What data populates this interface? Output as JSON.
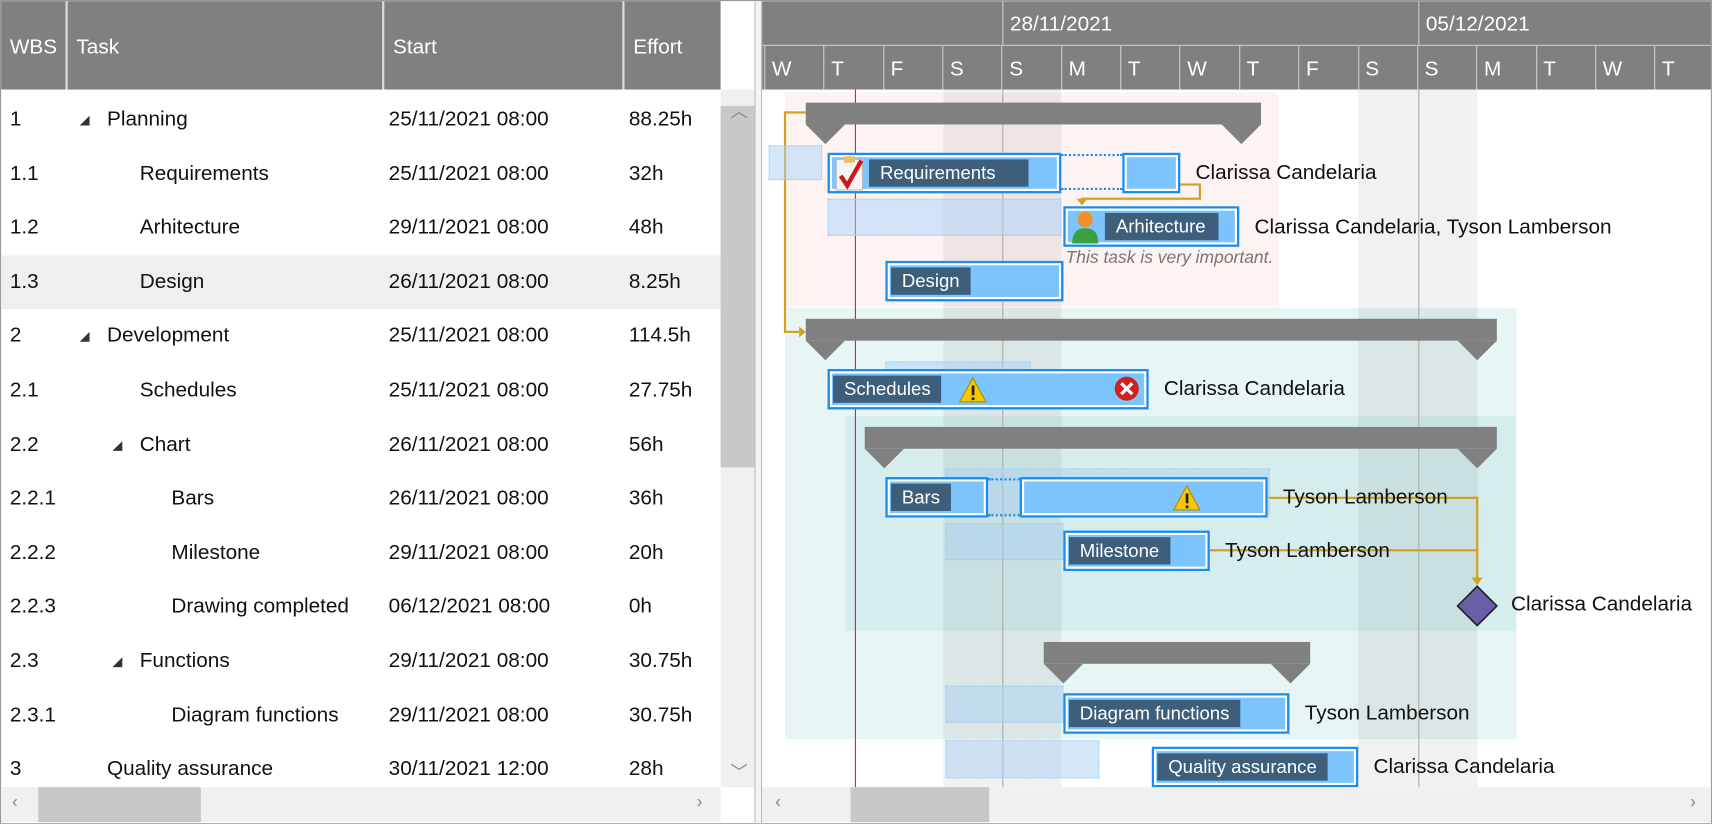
{
  "grid": {
    "columns": [
      "WBS",
      "Task",
      "Start",
      "Effort"
    ],
    "rows": [
      {
        "wbs": "1",
        "task": "Planning",
        "start": "25/11/2021 08:00",
        "effort": "88.25h",
        "level": 0,
        "expandable": true
      },
      {
        "wbs": "1.1",
        "task": "Requirements",
        "start": "25/11/2021 08:00",
        "effort": "32h",
        "level": 1
      },
      {
        "wbs": "1.2",
        "task": "Arhitecture",
        "start": "29/11/2021 08:00",
        "effort": "48h",
        "level": 1
      },
      {
        "wbs": "1.3",
        "task": "Design",
        "start": "26/11/2021 08:00",
        "effort": "8.25h",
        "level": 1,
        "selected": true
      },
      {
        "wbs": "2",
        "task": "Development",
        "start": "25/11/2021 08:00",
        "effort": "114.5h",
        "level": 0,
        "expandable": true
      },
      {
        "wbs": "2.1",
        "task": "Schedules",
        "start": "25/11/2021 08:00",
        "effort": "27.75h",
        "level": 1
      },
      {
        "wbs": "2.2",
        "task": "Chart",
        "start": "26/11/2021 08:00",
        "effort": "56h",
        "level": 1,
        "expandable": true
      },
      {
        "wbs": "2.2.1",
        "task": "Bars",
        "start": "26/11/2021 08:00",
        "effort": "36h",
        "level": 2
      },
      {
        "wbs": "2.2.2",
        "task": "Milestone",
        "start": "29/11/2021 08:00",
        "effort": "20h",
        "level": 2
      },
      {
        "wbs": "2.2.3",
        "task": "Drawing completed",
        "start": "06/12/2021 08:00",
        "effort": "0h",
        "level": 2
      },
      {
        "wbs": "2.3",
        "task": "Functions",
        "start": "29/11/2021 08:00",
        "effort": "30.75h",
        "level": 1,
        "expandable": true
      },
      {
        "wbs": "2.3.1",
        "task": "Diagram functions",
        "start": "29/11/2021 08:00",
        "effort": "30.75h",
        "level": 2
      },
      {
        "wbs": "3",
        "task": "Quality assurance",
        "start": "30/11/2021 12:00",
        "effort": "28h",
        "level": 0
      }
    ]
  },
  "timeline": {
    "weeks": [
      "28/11/2021",
      "05/12/2021"
    ],
    "days": [
      "W",
      "T",
      "F",
      "S",
      "S",
      "M",
      "T",
      "W",
      "T",
      "F",
      "S",
      "S",
      "M",
      "T",
      "W",
      "T"
    ]
  },
  "bars": {
    "requirements": {
      "label": "Requirements",
      "resource": "Clarissa Candelaria",
      "icon": "checklist-icon"
    },
    "arhitecture": {
      "label": "Arhitecture",
      "resource": "Clarissa Candelaria, Tyson Lamberson",
      "note": "This task is very important.",
      "icon": "person-icon"
    },
    "design": {
      "label": "Design"
    },
    "schedules": {
      "label": "Schedules",
      "resource": "Clarissa Candelaria",
      "icons": [
        "warning-icon",
        "error-icon"
      ]
    },
    "bars": {
      "label": "Bars",
      "resource": "Tyson Lamberson",
      "icon": "warning-icon"
    },
    "milestone": {
      "label": "Milestone",
      "resource": "Tyson Lamberson"
    },
    "drawing_completed": {
      "resource": "Clarissa Candelaria"
    },
    "diagram_functions": {
      "label": "Diagram functions",
      "resource": "Tyson Lamberson"
    },
    "quality_assurance": {
      "label": "Quality assurance",
      "resource": "Clarissa Candelaria"
    }
  },
  "colors": {
    "header": "#808080",
    "bar": "#7cc4fb",
    "bar_border": "#1a8cf0",
    "label": "#3d5f7c",
    "summary": "#808080",
    "dependency": "#d4a020",
    "today": "#d02050",
    "milestone": "#6560a8"
  }
}
